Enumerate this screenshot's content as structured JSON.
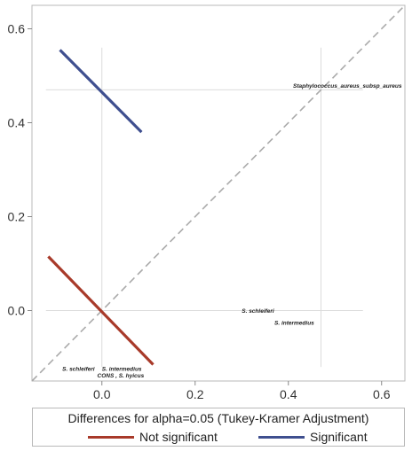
{
  "chart_data": {
    "type": "line",
    "xlim": [
      -0.15,
      0.65
    ],
    "ylim": [
      -0.15,
      0.65
    ],
    "xticks": [
      0.0,
      0.2,
      0.4,
      0.6
    ],
    "yticks": [
      0.0,
      0.2,
      0.4,
      0.6
    ],
    "xtick_labels": [
      "0.0",
      "0.2",
      "0.4",
      "0.6"
    ],
    "ytick_labels": [
      "0.0",
      "0.2",
      "0.4",
      "0.6"
    ],
    "diagonal": {
      "style": "dashed",
      "color": "#aaaaaa"
    },
    "reference_lines": {
      "horizontal": [
        {
          "y": 0.47,
          "x_from": -0.12,
          "x_to": 0.56
        },
        {
          "y": 0.0,
          "x_from": -0.12,
          "x_to": 0.56
        }
      ],
      "vertical": [
        {
          "x": 0.0,
          "y_from": -0.12,
          "y_to": 0.56
        },
        {
          "x": 0.47,
          "y_from": -0.12,
          "y_to": 0.56
        }
      ]
    },
    "series": [
      {
        "name": "Not significant",
        "color": "#a83a2a",
        "segments": [
          {
            "x": [
              -0.115,
              0.11
            ],
            "y": [
              0.115,
              -0.115
            ]
          }
        ]
      },
      {
        "name": "Significant",
        "color": "#3f4f8f",
        "segments": [
          {
            "x": [
              -0.09,
              0.085
            ],
            "y": [
              0.555,
              0.38
            ]
          }
        ]
      }
    ],
    "annotations": [
      {
        "text": "Staphylococcus_aureus_subsp_aureus",
        "x": 0.41,
        "y": 0.475
      },
      {
        "text": "S. schleiferi",
        "x": 0.3,
        "y": -0.005
      },
      {
        "text": "S. intermedius",
        "x": 0.37,
        "y": -0.03
      },
      {
        "text": "S. schleiferi",
        "x": -0.085,
        "y": -0.128
      },
      {
        "text": "S. intermedius",
        "x": 0.0,
        "y": -0.128
      },
      {
        "text": "CONS , S. hyicus",
        "x": -0.01,
        "y": -0.142
      }
    ],
    "legend": {
      "title": "Differences for alpha=0.05 (Tukey-Kramer Adjustment)",
      "position": "bottom",
      "entries": [
        "Not significant",
        "Significant"
      ]
    },
    "grid": false
  }
}
